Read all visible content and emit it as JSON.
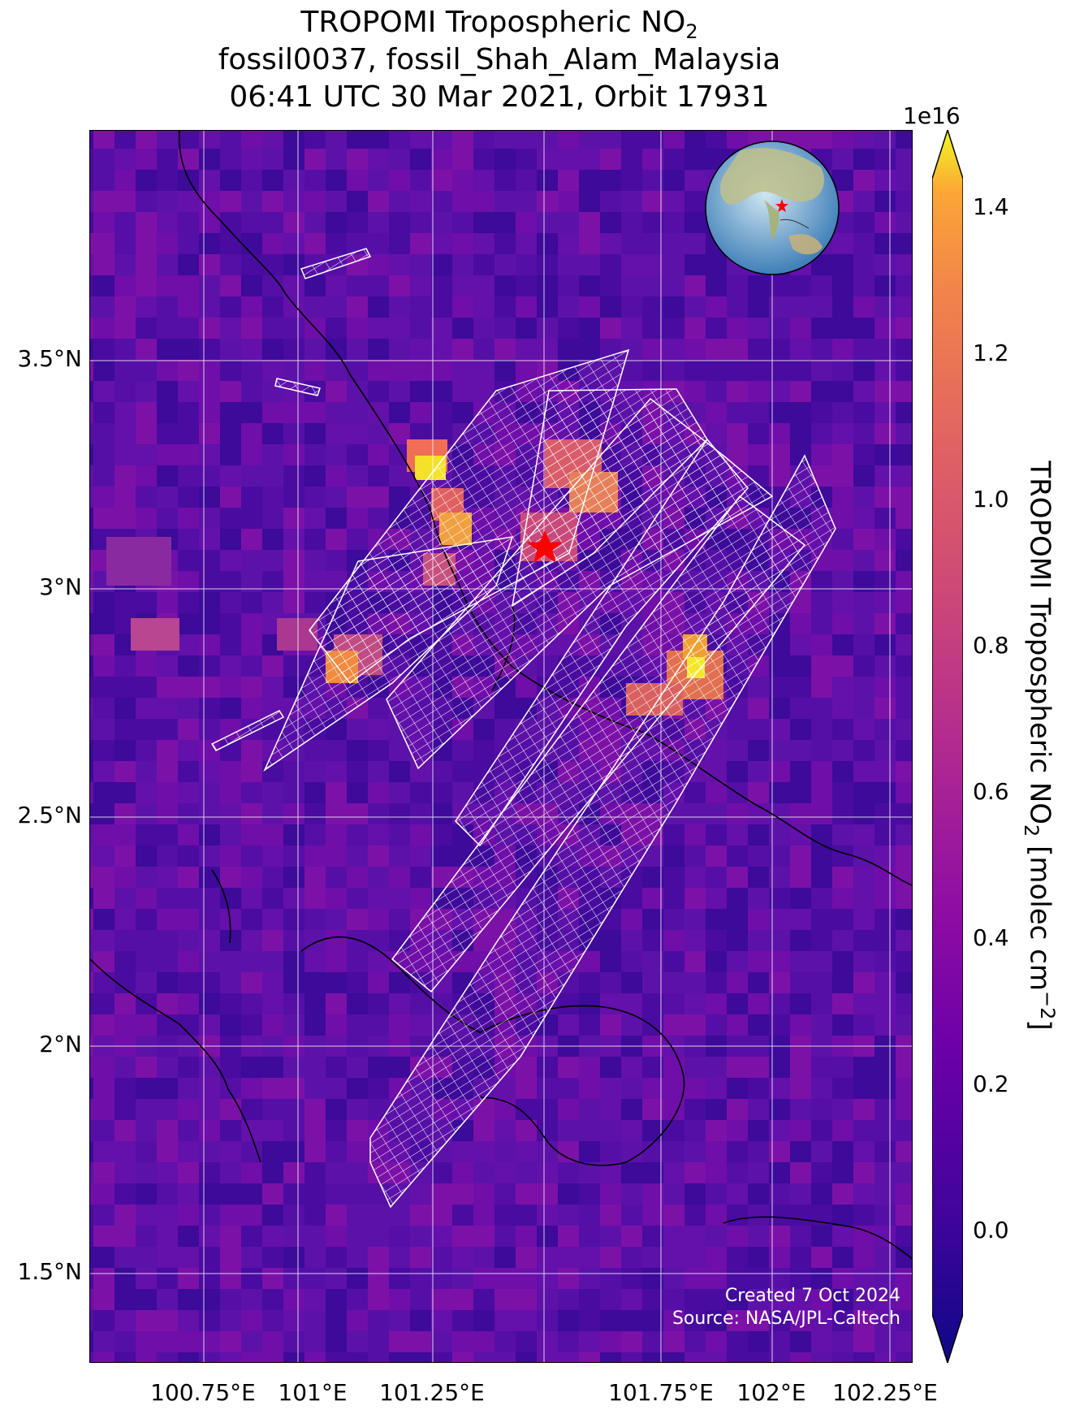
{
  "title": {
    "line1_prefix": "TROPOMI Tropospheric NO",
    "line1_sub": "2",
    "line2": "fossil0037, fossil_Shah_Alam_Malaysia",
    "line3": "06:41 UTC 30 Mar 2021, Orbit 17931"
  },
  "axes": {
    "y_ticks": [
      "3.5°N",
      "3°N",
      "2.5°N",
      "2°N",
      "1.5°N"
    ],
    "x_ticks": [
      "100.75°E",
      "101°E",
      "101.25°E",
      "101.75°E",
      "102°E",
      "102.25°E"
    ]
  },
  "colorbar": {
    "exponent": "1e16",
    "ticks": [
      "1.4",
      "1.2",
      "1.0",
      "0.8",
      "0.6",
      "0.4",
      "0.2",
      "0.0"
    ],
    "label_prefix": "TROPOMI Tropospheric NO",
    "label_sub": "2",
    "label_mid": " [molec cm",
    "label_sup": "−2",
    "label_suffix": "]",
    "colormap": "plasma",
    "extend": "both"
  },
  "credit": {
    "line1": "Created 7 Oct 2024",
    "line2": "Source: NASA/JPL-Caltech"
  },
  "target": {
    "name": "fossil_Shah_Alam_Malaysia",
    "marker": "red-star",
    "marker_color": "#ff0000"
  },
  "overlays": {
    "footprint_grid_color": "#ffffff",
    "coastline_color": "#000000",
    "gridline_color": "#ffffff"
  }
}
